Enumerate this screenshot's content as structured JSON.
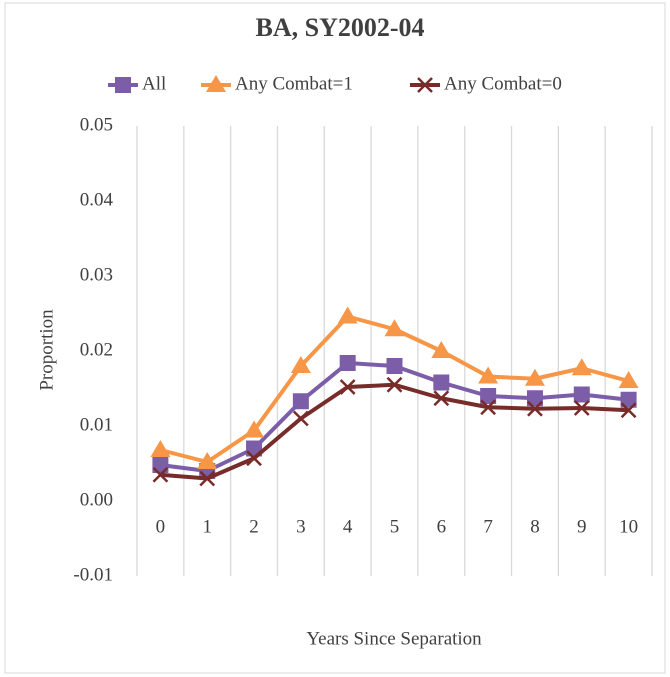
{
  "chart_data": {
    "type": "line",
    "title": "BA, SY2002-04",
    "x_label": "Years Since Separation",
    "y_label": "Proportion",
    "categories": [
      "0",
      "1",
      "2",
      "3",
      "4",
      "5",
      "6",
      "7",
      "8",
      "9",
      "10"
    ],
    "series": [
      {
        "name": "All",
        "color": "#7b5ea7",
        "marker": "square",
        "values": [
          0.0048,
          0.004,
          0.007,
          0.0133,
          0.0184,
          0.018,
          0.0158,
          0.014,
          0.0137,
          0.0142,
          0.0135
        ]
      },
      {
        "name": "Any Combat=1",
        "color": "#f79646",
        "marker": "triangle",
        "values": [
          0.0068,
          0.0052,
          0.0094,
          0.018,
          0.0246,
          0.0229,
          0.02,
          0.0166,
          0.0163,
          0.0177,
          0.016
        ]
      },
      {
        "name": "Any Combat=0",
        "color": "#772c2a",
        "marker": "x",
        "values": [
          0.0035,
          0.003,
          0.0057,
          0.011,
          0.0152,
          0.0155,
          0.0137,
          0.0125,
          0.0123,
          0.0124,
          0.0121
        ]
      }
    ],
    "ylim": [
      -0.01,
      0.05
    ],
    "yticks": [
      -0.01,
      {
        "value": 0,
        "label": "0.00"
      },
      0.01,
      0.02,
      0.03,
      0.04,
      0.05
    ],
    "grid": "vertical",
    "legend": "top"
  }
}
